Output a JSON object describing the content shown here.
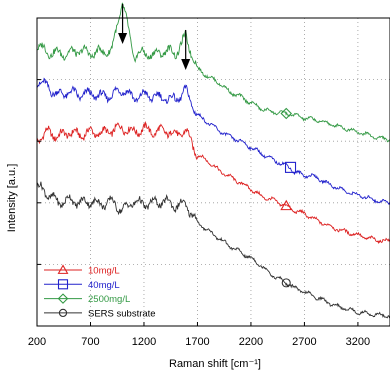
{
  "chart_data": {
    "type": "line",
    "title": "",
    "xlabel": "Raman shift [cm⁻¹]",
    "ylabel": "Intensity [a.u.]",
    "xlim": [
      200,
      3500
    ],
    "ylim": [
      0,
      10
    ],
    "x_ticks": [
      "200",
      "700",
      "1200",
      "1700",
      "2200",
      "2700",
      "3200"
    ],
    "grid": "dotted",
    "legend_position": "bottom-left",
    "annotations": [
      {
        "type": "arrow",
        "x": 1000
      },
      {
        "type": "arrow",
        "x": 1590
      }
    ],
    "series": [
      {
        "name": "10mg/L",
        "color": "#dd2222",
        "marker": "triangle",
        "marker_x": 2530,
        "x": [
          200,
          300,
          400,
          500,
          600,
          700,
          800,
          900,
          1000,
          1100,
          1200,
          1300,
          1400,
          1500,
          1590,
          1700,
          1800,
          1900,
          2000,
          2100,
          2200,
          2300,
          2400,
          2530,
          2600,
          2700,
          2800,
          2900,
          3000,
          3100,
          3200,
          3300,
          3400,
          3500
        ],
        "y": [
          6.05,
          6.3,
          6.15,
          6.3,
          6.2,
          6.3,
          6.25,
          6.35,
          6.45,
          6.3,
          6.4,
          6.3,
          6.35,
          6.2,
          6.35,
          5.55,
          5.35,
          5.05,
          4.85,
          4.65,
          4.45,
          4.2,
          4.1,
          3.9,
          3.75,
          3.65,
          3.45,
          3.3,
          3.15,
          3.05,
          2.95,
          2.85,
          2.78,
          2.75
        ]
      },
      {
        "name": "40mg/L",
        "color": "#2222cc",
        "marker": "square",
        "marker_x": 2570,
        "x": [
          200,
          300,
          400,
          500,
          600,
          700,
          800,
          900,
          1000,
          1100,
          1200,
          1300,
          1400,
          1500,
          1590,
          1700,
          1800,
          1900,
          2000,
          2100,
          2200,
          2300,
          2400,
          2570,
          2600,
          2700,
          2800,
          2900,
          3000,
          3100,
          3200,
          3300,
          3400,
          3500
        ],
        "y": [
          8.0,
          7.75,
          7.5,
          7.6,
          7.5,
          7.55,
          7.45,
          7.5,
          7.7,
          7.4,
          7.5,
          7.45,
          7.4,
          7.35,
          7.65,
          6.85,
          6.6,
          6.35,
          6.15,
          6.0,
          5.8,
          5.6,
          5.4,
          5.15,
          5.0,
          4.9,
          4.85,
          4.65,
          4.5,
          4.35,
          4.25,
          4.15,
          4.05,
          4.0
        ]
      },
      {
        "name": "2500mg/L",
        "color": "#339944",
        "marker": "diamond",
        "marker_x": 2530,
        "x": [
          200,
          300,
          400,
          500,
          600,
          700,
          800,
          900,
          1000,
          1100,
          1200,
          1300,
          1400,
          1500,
          1590,
          1700,
          1800,
          1900,
          2000,
          2100,
          2200,
          2300,
          2400,
          2530,
          2600,
          2700,
          2800,
          2900,
          3000,
          3100,
          3200,
          3300,
          3400,
          3500
        ],
        "y": [
          9.1,
          8.9,
          8.85,
          8.85,
          8.95,
          8.85,
          8.9,
          8.95,
          10.55,
          8.8,
          8.85,
          8.8,
          8.95,
          8.85,
          9.4,
          8.35,
          8.1,
          7.9,
          7.6,
          7.45,
          7.25,
          7.05,
          6.95,
          6.9,
          6.85,
          6.75,
          6.7,
          6.6,
          6.5,
          6.4,
          6.3,
          6.2,
          6.1,
          6.05
        ]
      },
      {
        "name": "SERS substrate",
        "color": "#333333",
        "marker": "circle",
        "marker_x": 2530,
        "x": [
          200,
          300,
          400,
          500,
          600,
          700,
          800,
          900,
          1000,
          1100,
          1200,
          1300,
          1400,
          1500,
          1590,
          1700,
          1800,
          1900,
          2000,
          2100,
          2200,
          2300,
          2400,
          2530,
          2600,
          2700,
          2800,
          2900,
          3000,
          3100,
          3200,
          3300,
          3400,
          3500
        ],
        "y": [
          4.55,
          4.3,
          4.0,
          4.1,
          4.0,
          4.05,
          3.95,
          4.05,
          3.75,
          4.05,
          3.95,
          4.0,
          4.05,
          3.9,
          3.95,
          3.35,
          3.1,
          2.85,
          2.6,
          2.4,
          2.2,
          1.95,
          1.65,
          1.4,
          1.25,
          1.1,
          0.95,
          0.8,
          0.65,
          0.55,
          0.45,
          0.4,
          0.35,
          0.33
        ]
      }
    ]
  }
}
